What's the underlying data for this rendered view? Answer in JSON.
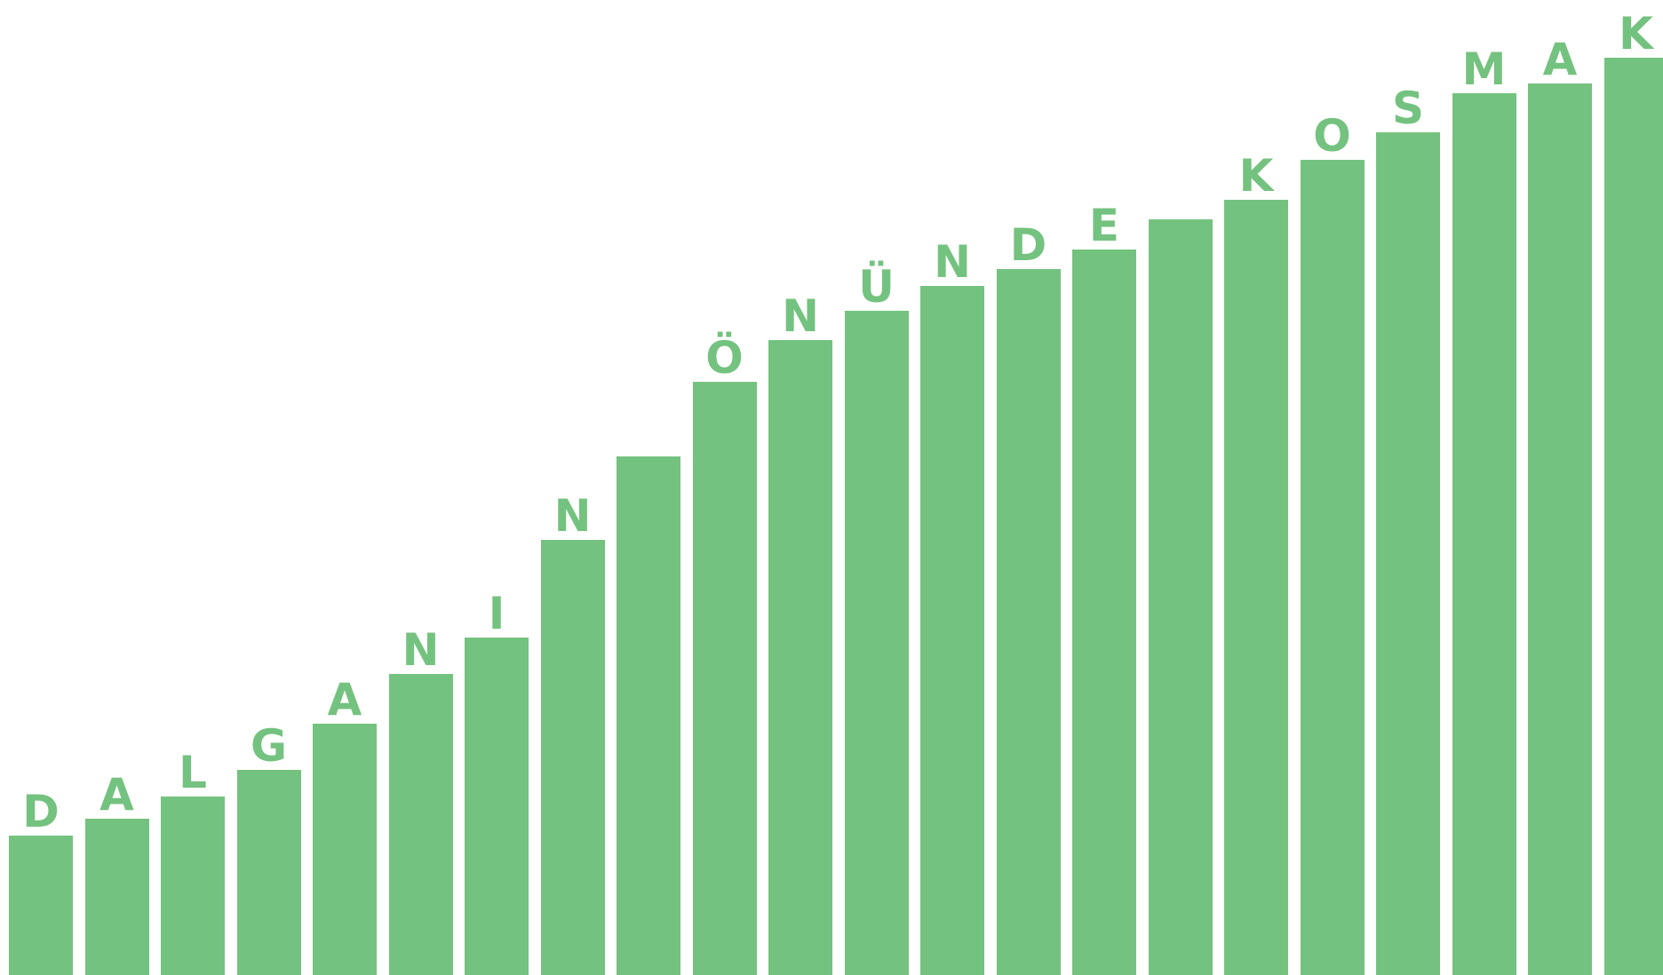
{
  "colors": {
    "bar": "#74c27f",
    "background": "#ffffff"
  },
  "letters": [
    "D",
    "A",
    "L",
    "G",
    "A",
    "N",
    "I",
    "N",
    "",
    "Ö",
    "N",
    "Ü",
    "N",
    "D",
    "E",
    "",
    "K",
    "O",
    "S",
    "M",
    "A",
    "K"
  ],
  "levels": [
    0.143,
    0.16,
    0.183,
    0.21,
    0.258,
    0.309,
    0.346,
    0.446,
    0.532,
    0.608,
    0.651,
    0.681,
    0.707,
    0.724,
    0.744,
    0.775,
    0.795,
    0.836,
    0.864,
    0.904,
    0.914,
    0.941
  ]
}
